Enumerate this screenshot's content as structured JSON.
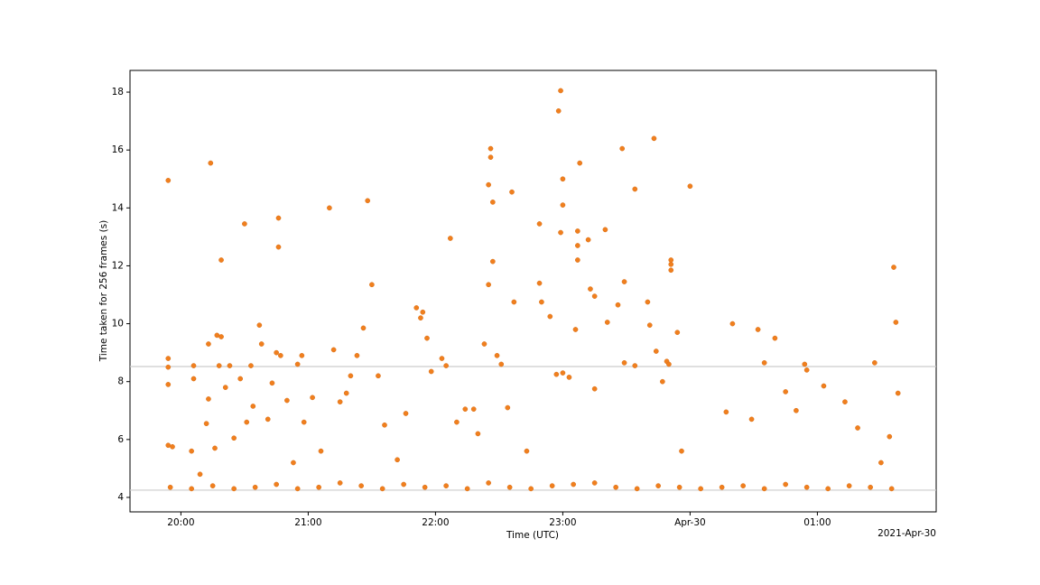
{
  "chart_data": {
    "type": "scatter",
    "x_label": "Time (UTC)",
    "y_label": "Time taken for 256 frames (s)",
    "x_offset_label": "2021-Apr-30",
    "xlim": [
      "2021-04-29T19:36",
      "2021-04-30T01:56"
    ],
    "xticks": [
      {
        "value": "2021-04-29T20:00",
        "label": "20:00"
      },
      {
        "value": "2021-04-29T21:00",
        "label": "21:00"
      },
      {
        "value": "2021-04-29T22:00",
        "label": "22:00"
      },
      {
        "value": "2021-04-29T23:00",
        "label": "23:00"
      },
      {
        "value": "2021-04-30T00:00",
        "label": "Apr-30"
      },
      {
        "value": "2021-04-30T01:00",
        "label": "01:00"
      }
    ],
    "ylim": [
      3.5,
      18.75
    ],
    "yticks": [
      4,
      6,
      8,
      10,
      12,
      14,
      16,
      18
    ],
    "hlines": [
      4.25,
      8.52
    ],
    "hline_color": "#cccccc",
    "grid": false,
    "series": [
      {
        "color": "#f07f1e",
        "x": [
          "2021-04-29T19:54",
          "2021-04-29T19:54",
          "2021-04-29T19:54",
          "2021-04-29T19:54",
          "2021-04-29T19:54",
          "2021-04-29T19:56",
          "2021-04-29T20:05",
          "2021-04-29T20:06",
          "2021-04-29T20:06",
          "2021-04-29T20:09",
          "2021-04-29T20:12",
          "2021-04-29T20:13",
          "2021-04-29T20:13",
          "2021-04-29T20:14",
          "2021-04-29T20:16",
          "2021-04-29T20:17",
          "2021-04-29T20:18",
          "2021-04-29T20:19",
          "2021-04-29T20:19",
          "2021-04-29T20:21",
          "2021-04-29T20:23",
          "2021-04-29T20:25",
          "2021-04-29T20:28",
          "2021-04-29T20:30",
          "2021-04-29T20:31",
          "2021-04-29T20:33",
          "2021-04-29T20:34",
          "2021-04-29T20:37",
          "2021-04-29T20:38",
          "2021-04-29T20:41",
          "2021-04-29T20:43",
          "2021-04-29T20:45",
          "2021-04-29T20:46",
          "2021-04-29T20:46",
          "2021-04-29T20:47",
          "2021-04-29T20:50",
          "2021-04-29T20:53",
          "2021-04-29T20:55",
          "2021-04-29T20:57",
          "2021-04-29T20:58",
          "2021-04-29T21:02",
          "2021-04-29T21:06",
          "2021-04-29T21:10",
          "2021-04-29T21:12",
          "2021-04-29T21:15",
          "2021-04-29T21:18",
          "2021-04-29T21:20",
          "2021-04-29T21:23",
          "2021-04-29T21:26",
          "2021-04-29T21:28",
          "2021-04-29T21:30",
          "2021-04-29T21:33",
          "2021-04-29T21:36",
          "2021-04-29T21:42",
          "2021-04-29T21:46",
          "2021-04-29T21:51",
          "2021-04-29T21:53",
          "2021-04-29T21:54",
          "2021-04-29T21:56",
          "2021-04-29T21:58",
          "2021-04-29T22:03",
          "2021-04-29T22:05",
          "2021-04-29T22:07",
          "2021-04-29T22:10",
          "2021-04-29T22:14",
          "2021-04-29T22:18",
          "2021-04-29T22:20",
          "2021-04-29T22:23",
          "2021-04-29T22:25",
          "2021-04-29T22:25",
          "2021-04-29T22:26",
          "2021-04-29T22:26",
          "2021-04-29T22:27",
          "2021-04-29T22:27",
          "2021-04-29T22:29",
          "2021-04-29T22:31",
          "2021-04-29T22:34",
          "2021-04-29T22:36",
          "2021-04-29T22:37",
          "2021-04-29T22:43",
          "2021-04-29T22:49",
          "2021-04-29T22:49",
          "2021-04-29T22:50",
          "2021-04-29T22:54",
          "2021-04-29T22:57",
          "2021-04-29T22:58",
          "2021-04-29T22:59",
          "2021-04-29T22:59",
          "2021-04-29T23:00",
          "2021-04-29T23:00",
          "2021-04-29T23:00",
          "2021-04-29T23:03",
          "2021-04-29T23:06",
          "2021-04-29T23:07",
          "2021-04-29T23:07",
          "2021-04-29T23:07",
          "2021-04-29T23:08",
          "2021-04-29T23:12",
          "2021-04-29T23:13",
          "2021-04-29T23:15",
          "2021-04-29T23:15",
          "2021-04-29T23:20",
          "2021-04-29T23:21",
          "2021-04-29T23:26",
          "2021-04-29T23:28",
          "2021-04-29T23:29",
          "2021-04-29T23:29",
          "2021-04-29T23:34",
          "2021-04-29T23:34",
          "2021-04-29T23:40",
          "2021-04-29T23:41",
          "2021-04-29T23:43",
          "2021-04-29T23:44",
          "2021-04-29T23:47",
          "2021-04-29T23:49",
          "2021-04-29T23:50",
          "2021-04-29T23:51",
          "2021-04-29T23:51",
          "2021-04-29T23:51",
          "2021-04-29T23:54",
          "2021-04-29T23:56",
          "2021-04-30T00:00",
          "2021-04-30T00:17",
          "2021-04-30T00:20",
          "2021-04-30T00:29",
          "2021-04-30T00:32",
          "2021-04-30T00:35",
          "2021-04-30T00:40",
          "2021-04-30T00:45",
          "2021-04-30T00:50",
          "2021-04-30T00:54",
          "2021-04-30T00:55",
          "2021-04-30T01:03",
          "2021-04-30T01:13",
          "2021-04-30T01:19",
          "2021-04-30T01:27",
          "2021-04-30T01:30",
          "2021-04-30T01:34",
          "2021-04-30T01:36",
          "2021-04-30T01:37",
          "2021-04-30T01:38",
          "2021-04-29T19:55",
          "2021-04-29T20:05",
          "2021-04-29T20:15",
          "2021-04-29T20:25",
          "2021-04-29T20:35",
          "2021-04-29T20:45",
          "2021-04-29T20:55",
          "2021-04-29T21:05",
          "2021-04-29T21:15",
          "2021-04-29T21:25",
          "2021-04-29T21:35",
          "2021-04-29T21:45",
          "2021-04-29T21:55",
          "2021-04-29T22:05",
          "2021-04-29T22:15",
          "2021-04-29T22:25",
          "2021-04-29T22:35",
          "2021-04-29T22:45",
          "2021-04-29T22:55",
          "2021-04-29T23:05",
          "2021-04-29T23:15",
          "2021-04-29T23:25",
          "2021-04-29T23:35",
          "2021-04-29T23:45",
          "2021-04-29T23:55",
          "2021-04-30T00:05",
          "2021-04-30T00:15",
          "2021-04-30T00:25",
          "2021-04-30T00:35",
          "2021-04-30T00:45",
          "2021-04-30T00:55",
          "2021-04-30T01:05",
          "2021-04-30T01:15",
          "2021-04-30T01:25",
          "2021-04-30T01:35"
        ],
        "values": [
          14.95,
          8.8,
          8.5,
          7.9,
          5.8,
          5.75,
          5.6,
          8.55,
          8.1,
          4.8,
          6.55,
          9.3,
          7.4,
          15.55,
          5.7,
          9.6,
          8.55,
          12.2,
          9.55,
          7.8,
          8.55,
          6.05,
          8.1,
          13.45,
          6.6,
          8.55,
          7.15,
          9.95,
          9.3,
          6.7,
          7.95,
          9.0,
          12.65,
          13.65,
          8.9,
          7.35,
          5.2,
          8.6,
          8.9,
          6.6,
          7.45,
          5.6,
          14.0,
          9.1,
          7.3,
          7.6,
          8.2,
          8.9,
          9.85,
          14.25,
          11.35,
          8.2,
          6.5,
          5.3,
          6.9,
          10.55,
          10.2,
          10.4,
          9.5,
          8.35,
          8.8,
          8.55,
          12.95,
          6.6,
          7.05,
          7.05,
          6.2,
          9.3,
          14.8,
          11.35,
          16.05,
          15.75,
          14.2,
          12.15,
          8.9,
          8.6,
          7.1,
          14.55,
          10.75,
          5.6,
          13.45,
          11.4,
          10.75,
          10.25,
          8.25,
          17.35,
          18.05,
          13.15,
          15.0,
          14.1,
          8.3,
          8.15,
          9.8,
          13.2,
          12.7,
          12.2,
          15.55,
          12.9,
          11.2,
          10.95,
          7.75,
          13.25,
          10.05,
          10.65,
          16.05,
          11.45,
          8.65,
          14.65,
          8.55,
          10.75,
          9.95,
          16.4,
          9.05,
          8.0,
          8.7,
          8.6,
          12.2,
          12.05,
          11.85,
          9.7,
          5.6,
          14.75,
          6.95,
          10.0,
          6.7,
          9.8,
          8.65,
          9.5,
          7.65,
          7.0,
          8.6,
          8.4,
          7.85,
          7.3,
          6.4,
          8.65,
          5.2,
          6.1,
          11.95,
          10.05,
          7.6,
          4.35,
          4.3,
          4.4,
          4.3,
          4.35,
          4.45,
          4.3,
          4.35,
          4.5,
          4.4,
          4.3,
          4.45,
          4.35,
          4.4,
          4.3,
          4.5,
          4.35,
          4.3,
          4.4,
          4.45,
          4.5,
          4.35,
          4.3,
          4.4,
          4.35,
          4.3,
          4.35,
          4.4,
          4.3,
          4.45,
          4.35,
          4.3,
          4.4,
          4.35,
          4.3
        ]
      }
    ]
  }
}
